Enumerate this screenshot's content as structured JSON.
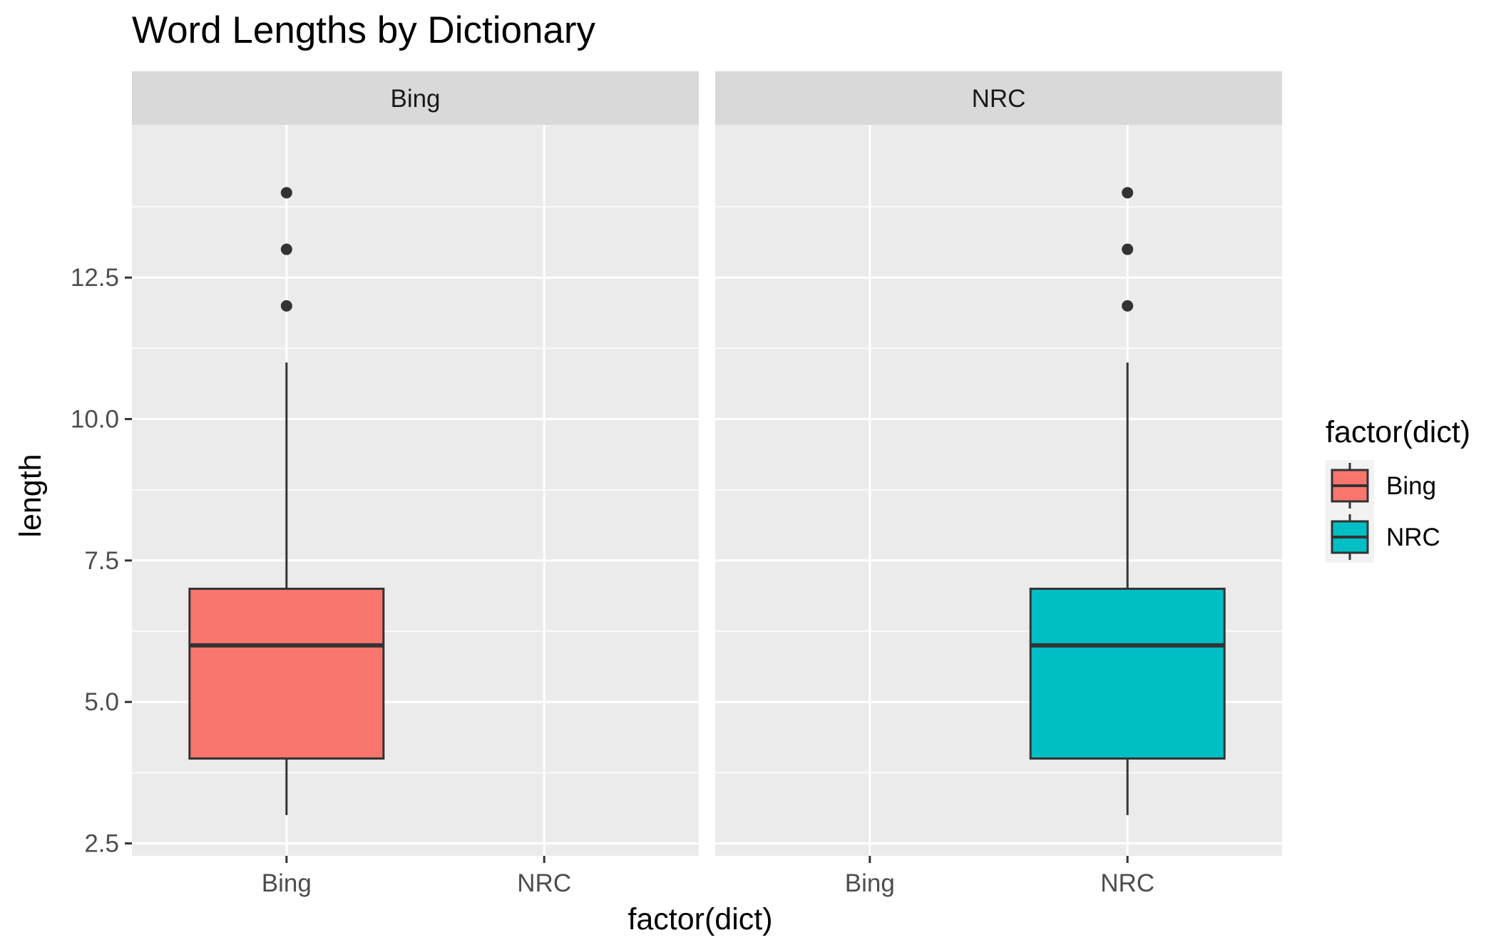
{
  "chart_data": {
    "type": "boxplot",
    "title": "Word Lengths by Dictionary",
    "xlabel": "factor(dict)",
    "ylabel": "length",
    "ylim": [
      2.5,
      15
    ],
    "y_ticks": [
      2.5,
      5.0,
      7.5,
      10.0,
      12.5
    ],
    "y_tick_labels": [
      "2.5",
      "5.0",
      "7.5",
      "10.0",
      "12.5"
    ],
    "categories": [
      "Bing",
      "NRC"
    ],
    "grid": true,
    "panel_background": "#ebebeb",
    "strip_background": "#d9d9d9",
    "facets": [
      {
        "label": "Bing",
        "boxes": [
          {
            "category": "Bing",
            "fill": "#F8766D",
            "lower_whisker": 3,
            "q1": 4,
            "median": 6,
            "q3": 7,
            "upper_whisker": 11,
            "outliers": [
              12,
              13,
              14
            ]
          }
        ]
      },
      {
        "label": "NRC",
        "boxes": [
          {
            "category": "NRC",
            "fill": "#00BFC4",
            "lower_whisker": 3,
            "q1": 4,
            "median": 6,
            "q3": 7,
            "upper_whisker": 11,
            "outliers": [
              12,
              13,
              14
            ]
          }
        ]
      }
    ],
    "legend": {
      "title": "factor(dict)",
      "position": "right",
      "entries": [
        {
          "label": "Bing",
          "fill": "#F8766D"
        },
        {
          "label": "NRC",
          "fill": "#00BFC4"
        }
      ]
    }
  }
}
